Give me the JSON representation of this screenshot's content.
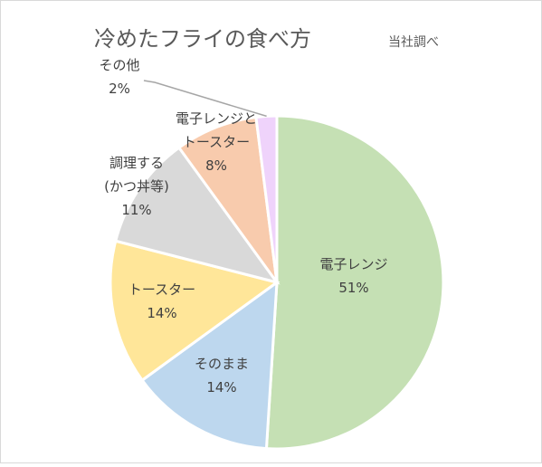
{
  "chart_data": {
    "type": "pie",
    "title": "冷めたフライの食べ方",
    "subtitle": "当社調べ",
    "slices": [
      {
        "label": [
          "電子レンジ"
        ],
        "pct_label": "51%",
        "value": 51,
        "color": "#c5e0b4",
        "name": "slice-microwave"
      },
      {
        "label": [
          "そのまま"
        ],
        "pct_label": "14%",
        "value": 14,
        "color": "#bdd7ee",
        "name": "slice-as-is"
      },
      {
        "label": [
          "トースター"
        ],
        "pct_label": "14%",
        "value": 14,
        "color": "#ffe699",
        "name": "slice-toaster"
      },
      {
        "label": [
          "調理する",
          "(かつ丼等)"
        ],
        "pct_label": "11%",
        "value": 11,
        "color": "#d9d9d9",
        "name": "slice-cooked"
      },
      {
        "label": [
          "電子レンジと",
          "トースター"
        ],
        "pct_label": "8%",
        "value": 8,
        "color": "#f8cbad",
        "name": "slice-microwave-and-toaster"
      },
      {
        "label": [
          "その他"
        ],
        "pct_label": "2%",
        "value": 2,
        "color": "#efd3fb",
        "name": "slice-other"
      }
    ]
  }
}
